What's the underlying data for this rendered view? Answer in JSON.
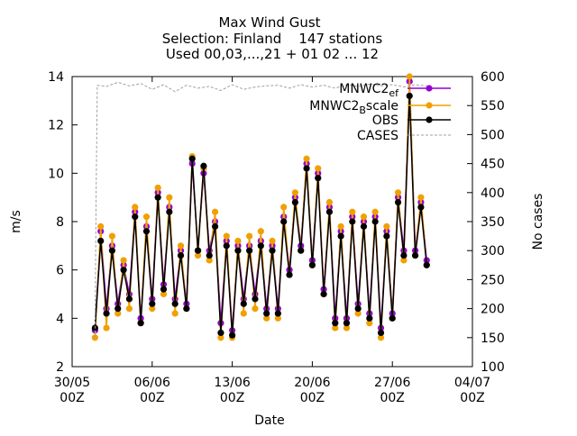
{
  "chart_data": {
    "type": "line",
    "title_lines": [
      "Max Wind Gust",
      "Selection: Finland    147 stations",
      "Used 00,03,...,21 + 01 02 ... 12"
    ],
    "xlabel": "Date",
    "ylabel": "m/s",
    "y2label": "No cases",
    "x_ticks": [
      {
        "line1": "30/05",
        "line2": "00Z"
      },
      {
        "line1": "06/06",
        "line2": "00Z"
      },
      {
        "line1": "13/06",
        "line2": "00Z"
      },
      {
        "line1": "20/06",
        "line2": "00Z"
      },
      {
        "line1": "27/06",
        "line2": "00Z"
      },
      {
        "line1": "04/07",
        "line2": "00Z"
      }
    ],
    "x_range_days": [
      0,
      35
    ],
    "ylim": [
      2,
      14
    ],
    "y_ticks": [
      2,
      4,
      6,
      8,
      10,
      12,
      14
    ],
    "y2lim": [
      100,
      600
    ],
    "y2_ticks": [
      100,
      150,
      200,
      250,
      300,
      350,
      400,
      450,
      500,
      550,
      600
    ],
    "grid": false,
    "legend_position": "top-right",
    "series": [
      {
        "name": "MNWC2_ef",
        "legend_main": "MNWC2",
        "legend_sub": "ef",
        "color": "#9400d3",
        "style": "solid",
        "marker": "dot",
        "x": [
          2.0,
          2.5,
          3.0,
          3.5,
          4.0,
          4.5,
          5.0,
          5.5,
          6.0,
          6.5,
          7.0,
          7.5,
          8.0,
          8.5,
          9.0,
          9.5,
          10.0,
          10.5,
          11.0,
          11.5,
          12.0,
          12.5,
          13.0,
          13.5,
          14.0,
          14.5,
          15.0,
          15.5,
          16.0,
          16.5,
          17.0,
          17.5,
          18.0,
          18.5,
          19.0,
          19.5,
          20.0,
          20.5,
          21.0,
          21.5,
          22.0,
          22.5,
          23.0,
          23.5,
          24.0,
          24.5,
          25.0,
          25.5,
          26.0,
          26.5,
          27.0,
          27.5,
          28.0,
          28.5,
          29.0,
          29.5,
          30.0,
          30.5,
          31.0
        ],
        "y": [
          3.5,
          7.6,
          4.4,
          7.0,
          4.6,
          6.2,
          5.0,
          8.4,
          4.0,
          7.8,
          4.8,
          9.2,
          5.4,
          8.6,
          4.8,
          6.8,
          4.6,
          10.4,
          6.8,
          10.0,
          6.8,
          8.0,
          3.8,
          7.2,
          3.5,
          7.0,
          4.8,
          7.0,
          5.0,
          7.2,
          4.4,
          7.0,
          4.4,
          8.2,
          6.0,
          9.0,
          7.0,
          10.4,
          6.4,
          10.0,
          5.2,
          8.6,
          4.0,
          7.6,
          4.0,
          8.2,
          4.6,
          8.0,
          4.2,
          8.2,
          3.6,
          7.6,
          4.2,
          9.0,
          6.8,
          13.8,
          6.8,
          8.8,
          6.4
        ]
      },
      {
        "name": "MNWC2_Bscale",
        "legend_main": "MNWC2",
        "legend_sub": "B",
        "legend_tail": "scale",
        "color": "#f0a000",
        "style": "solid",
        "marker": "dot",
        "x": [
          2.0,
          2.5,
          3.0,
          3.5,
          4.0,
          4.5,
          5.0,
          5.5,
          6.0,
          6.5,
          7.0,
          7.5,
          8.0,
          8.5,
          9.0,
          9.5,
          10.0,
          10.5,
          11.0,
          11.5,
          12.0,
          12.5,
          13.0,
          13.5,
          14.0,
          14.5,
          15.0,
          15.5,
          16.0,
          16.5,
          17.0,
          17.5,
          18.0,
          18.5,
          19.0,
          19.5,
          20.0,
          20.5,
          21.0,
          21.5,
          22.0,
          22.5,
          23.0,
          23.5,
          24.0,
          24.5,
          25.0,
          25.5,
          26.0,
          26.5,
          27.0,
          27.5,
          28.0,
          28.5,
          29.0,
          29.5,
          30.0,
          30.5,
          31.0
        ],
        "y": [
          3.2,
          7.8,
          3.6,
          7.4,
          4.2,
          6.4,
          4.4,
          8.6,
          3.8,
          8.2,
          4.4,
          9.4,
          5.0,
          9.0,
          4.2,
          7.0,
          4.4,
          10.7,
          6.6,
          10.2,
          6.4,
          8.4,
          3.2,
          7.4,
          3.2,
          7.2,
          4.2,
          7.4,
          4.4,
          7.6,
          4.0,
          7.2,
          4.0,
          8.6,
          5.8,
          9.2,
          6.8,
          10.6,
          6.2,
          10.2,
          5.0,
          8.8,
          3.6,
          7.8,
          3.6,
          8.4,
          4.2,
          8.2,
          3.8,
          8.4,
          3.2,
          7.8,
          4.0,
          9.2,
          6.4,
          14.0,
          6.6,
          9.0,
          6.2
        ]
      },
      {
        "name": "OBS",
        "legend_main": "OBS",
        "color": "#000000",
        "style": "solid",
        "marker": "dot",
        "x": [
          2.0,
          2.5,
          3.0,
          3.5,
          4.0,
          4.5,
          5.0,
          5.5,
          6.0,
          6.5,
          7.0,
          7.5,
          8.0,
          8.5,
          9.0,
          9.5,
          10.0,
          10.5,
          11.0,
          11.5,
          12.0,
          12.5,
          13.0,
          13.5,
          14.0,
          14.5,
          15.0,
          15.5,
          16.0,
          16.5,
          17.0,
          17.5,
          18.0,
          18.5,
          19.0,
          19.5,
          20.0,
          20.5,
          21.0,
          21.5,
          22.0,
          22.5,
          23.0,
          23.5,
          24.0,
          24.5,
          25.0,
          25.5,
          26.0,
          26.5,
          27.0,
          27.5,
          28.0,
          28.5,
          29.0,
          29.5,
          30.0,
          30.5,
          31.0
        ],
        "y": [
          3.6,
          7.2,
          4.2,
          6.8,
          4.4,
          6.0,
          4.8,
          8.2,
          3.8,
          7.6,
          4.6,
          9.0,
          5.2,
          8.4,
          4.6,
          6.6,
          4.4,
          10.6,
          6.8,
          10.3,
          6.6,
          7.8,
          3.4,
          7.0,
          3.3,
          6.8,
          4.6,
          6.8,
          4.8,
          7.0,
          4.2,
          6.8,
          4.2,
          8.0,
          5.8,
          8.8,
          6.8,
          10.2,
          6.2,
          9.8,
          5.0,
          8.4,
          3.8,
          7.4,
          3.8,
          8.0,
          4.4,
          7.8,
          4.0,
          8.0,
          3.4,
          7.4,
          4.0,
          8.8,
          6.6,
          13.2,
          6.6,
          8.6,
          6.2
        ]
      },
      {
        "name": "CASES",
        "legend_main": "CASES",
        "color": "#a0a0a0",
        "style": "dashed",
        "marker": "none",
        "axis": "y2",
        "x": [
          2.0,
          2.1,
          2.2,
          3,
          4,
          5,
          6,
          7,
          8,
          9,
          10,
          11,
          12,
          13,
          14,
          15,
          16,
          17,
          18,
          19,
          20,
          21,
          22,
          23,
          24,
          25,
          26,
          27,
          28,
          29,
          30,
          31
        ],
        "y": [
          150,
          400,
          585,
          583,
          590,
          584,
          588,
          578,
          586,
          574,
          585,
          580,
          583,
          576,
          586,
          578,
          582,
          584,
          585,
          580,
          586,
          582,
          585,
          580,
          586,
          583,
          587,
          584,
          586,
          582,
          586,
          584
        ]
      }
    ]
  }
}
